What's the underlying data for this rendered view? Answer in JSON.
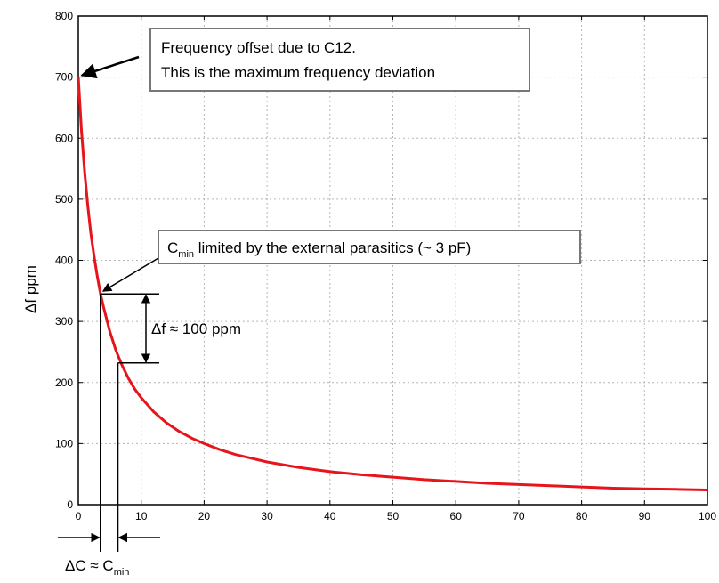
{
  "chart_data": {
    "type": "line",
    "title": "",
    "xlabel": "",
    "ylabel": "Δf ppm",
    "xlim": [
      0,
      100
    ],
    "ylim": [
      0,
      800
    ],
    "xticks": [
      0,
      10,
      20,
      30,
      40,
      50,
      60,
      70,
      80,
      90,
      100
    ],
    "yticks": [
      0,
      100,
      200,
      300,
      400,
      500,
      600,
      700,
      800
    ],
    "grid": true,
    "legend": "none",
    "series": [
      {
        "color": "#e8141c",
        "x": [
          0,
          0.5,
          1,
          1.5,
          2,
          2.5,
          3,
          3.5,
          4,
          5,
          6,
          7,
          8,
          9,
          10,
          12,
          14,
          16,
          18,
          20,
          22.5,
          25,
          27.5,
          30,
          35,
          40,
          45,
          50,
          55,
          60,
          65,
          70,
          75,
          80,
          85,
          90,
          95,
          100
        ],
        "y": [
          700,
          613,
          545,
          490,
          444,
          407,
          375,
          347,
          324,
          284,
          252,
          227,
          206,
          189,
          175,
          152,
          134,
          120,
          109,
          100,
          90,
          82,
          76,
          70,
          61,
          54,
          49,
          45,
          41,
          38,
          35,
          33,
          31,
          29,
          27,
          26,
          25,
          24
        ]
      }
    ],
    "annotations": {
      "max_offset_line1": "Frequency offset due to C12.",
      "max_offset_line2": "This is the maximum frequency deviation",
      "cmin_prefix": "C",
      "cmin_sub": "min",
      "cmin_rest": " limited by the external parasitics (~ 3 pF)",
      "delta_f": "Δf ≈ 100 ppm",
      "delta_c_prefix": "ΔC ≈ C",
      "delta_c_sub": "min",
      "marker_upper": {
        "x": 3.5,
        "y": 345
      },
      "marker_lower": {
        "x": 6.3,
        "y": 232
      }
    }
  }
}
